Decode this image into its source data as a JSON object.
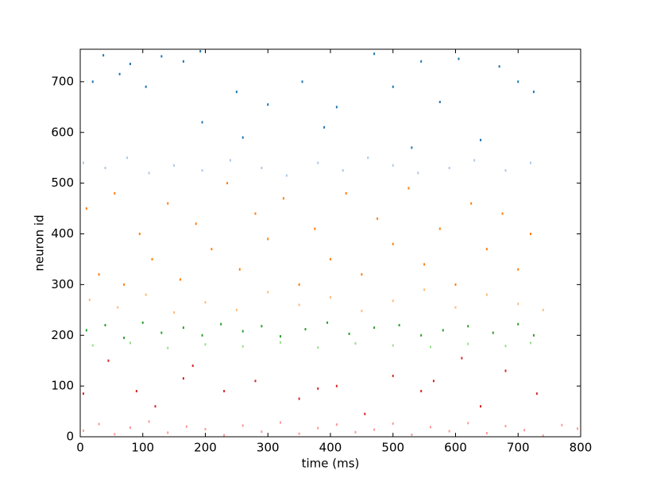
{
  "chart_data": {
    "type": "scatter",
    "x_label": "time (ms)",
    "y_label": "neuron id",
    "xlim": [
      0,
      800
    ],
    "xticks": [
      0,
      100,
      200,
      300,
      400,
      500,
      600,
      700,
      800
    ],
    "ylim": [
      0,
      764
    ],
    "yticks": [
      0,
      100,
      200,
      300,
      400,
      500,
      600,
      700
    ],
    "grid": false,
    "series": [
      {
        "color": "#1f77b4",
        "x": [
          20,
          37,
          63,
          80,
          105,
          130,
          165,
          192,
          195,
          250,
          260,
          300,
          355,
          390,
          410,
          470,
          500,
          530,
          545,
          575,
          605,
          640,
          670,
          700,
          725
        ],
        "values": [
          700,
          752,
          715,
          735,
          690,
          750,
          740,
          760,
          620,
          680,
          590,
          655,
          700,
          610,
          650,
          755,
          690,
          570,
          740,
          660,
          745,
          585,
          730,
          700,
          680
        ]
      },
      {
        "color": "#aec7e8",
        "x": [
          5,
          40,
          75,
          110,
          150,
          195,
          240,
          290,
          330,
          380,
          420,
          460,
          500,
          540,
          590,
          630,
          680,
          720
        ],
        "values": [
          540,
          530,
          550,
          520,
          535,
          525,
          545,
          530,
          515,
          540,
          525,
          550,
          535,
          520,
          530,
          545,
          525,
          540
        ]
      },
      {
        "color": "#ff7f0e",
        "x": [
          10,
          30,
          55,
          70,
          95,
          115,
          140,
          160,
          185,
          210,
          235,
          255,
          280,
          300,
          325,
          350,
          375,
          400,
          425,
          450,
          475,
          500,
          525,
          550,
          575,
          600,
          625,
          650,
          675,
          700,
          720
        ],
        "values": [
          450,
          320,
          480,
          300,
          400,
          350,
          460,
          310,
          420,
          370,
          500,
          330,
          440,
          390,
          470,
          300,
          410,
          350,
          480,
          320,
          430,
          380,
          490,
          340,
          410,
          300,
          460,
          370,
          440,
          330,
          400
        ]
      },
      {
        "color": "#ffbb78",
        "x": [
          15,
          60,
          105,
          150,
          200,
          250,
          300,
          350,
          400,
          450,
          500,
          550,
          600,
          650,
          700,
          740
        ],
        "values": [
          270,
          255,
          280,
          245,
          265,
          250,
          285,
          260,
          275,
          248,
          268,
          290,
          255,
          280,
          262,
          250
        ]
      },
      {
        "color": "#2ca02c",
        "x": [
          10,
          40,
          70,
          100,
          130,
          165,
          195,
          225,
          260,
          290,
          320,
          360,
          395,
          430,
          470,
          510,
          545,
          580,
          620,
          660,
          700,
          725
        ],
        "values": [
          210,
          220,
          195,
          225,
          205,
          215,
          200,
          222,
          208,
          218,
          198,
          212,
          225,
          203,
          215,
          220,
          200,
          210,
          218,
          205,
          222,
          200
        ]
      },
      {
        "color": "#98df8a",
        "x": [
          20,
          80,
          140,
          200,
          260,
          320,
          380,
          440,
          500,
          560,
          620,
          680,
          720
        ],
        "values": [
          180,
          185,
          175,
          182,
          178,
          186,
          176,
          184,
          180,
          177,
          183,
          179,
          185
        ]
      },
      {
        "color": "#d62728",
        "x": [
          5,
          45,
          90,
          120,
          165,
          180,
          230,
          280,
          350,
          380,
          410,
          455,
          500,
          545,
          565,
          610,
          640,
          680,
          730
        ],
        "values": [
          85,
          150,
          90,
          60,
          115,
          140,
          90,
          110,
          75,
          95,
          100,
          45,
          120,
          90,
          110,
          155,
          60,
          130,
          85
        ]
      },
      {
        "color": "#ff9896",
        "x": [
          5,
          30,
          55,
          80,
          110,
          140,
          170,
          200,
          230,
          260,
          290,
          320,
          350,
          380,
          410,
          440,
          470,
          500,
          530,
          560,
          590,
          620,
          650,
          680,
          710,
          740,
          770,
          795
        ],
        "values": [
          12,
          25,
          5,
          18,
          30,
          8,
          20,
          15,
          3,
          22,
          10,
          28,
          6,
          17,
          24,
          9,
          14,
          26,
          4,
          19,
          11,
          27,
          7,
          21,
          13,
          2,
          23,
          16
        ]
      }
    ]
  }
}
